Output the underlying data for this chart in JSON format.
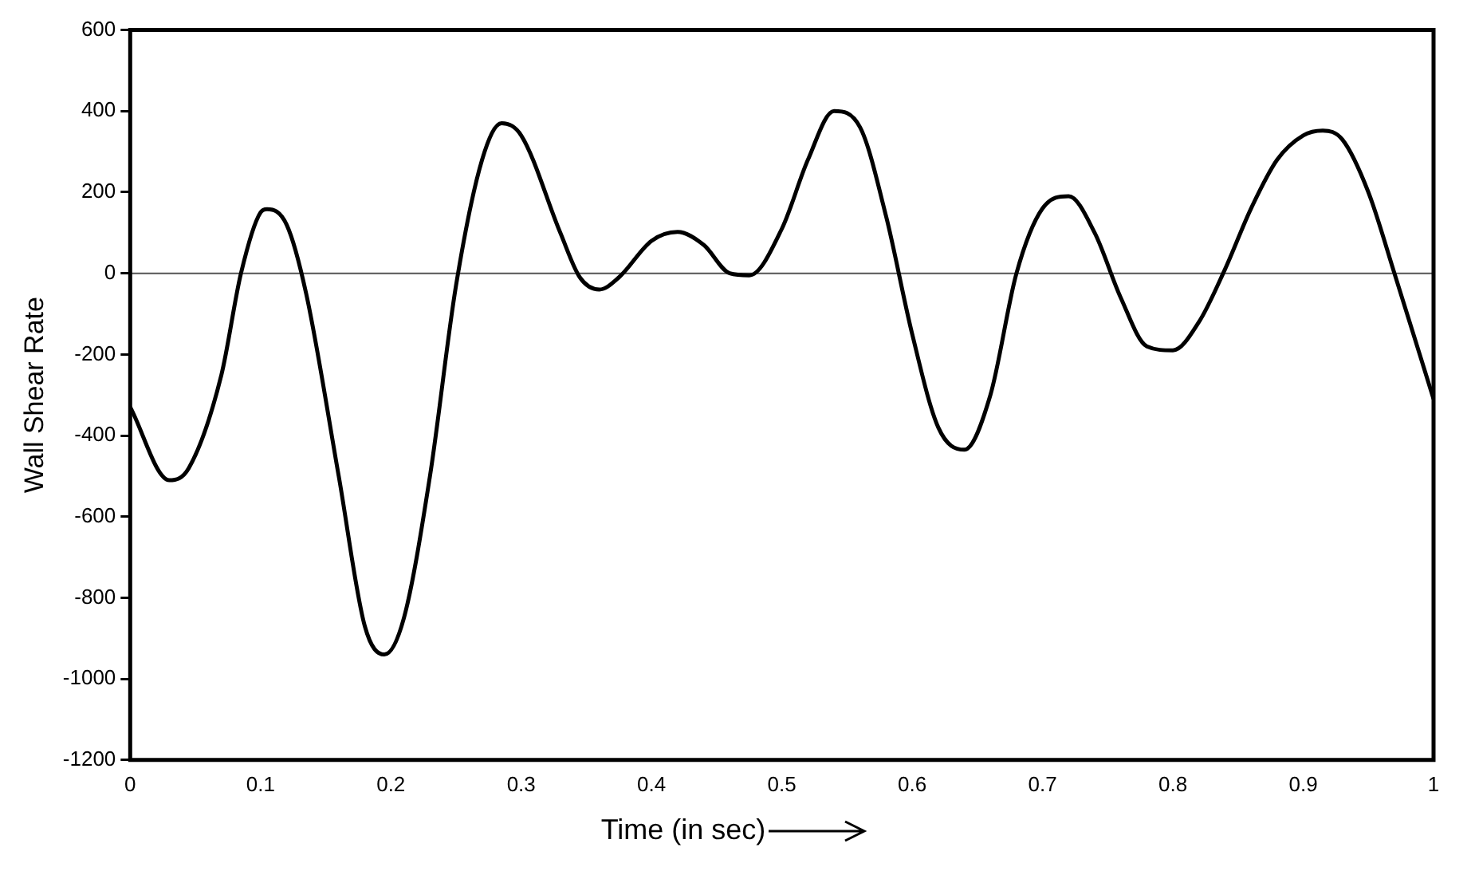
{
  "chart_data": {
    "type": "line",
    "xlabel": "Time (in sec)",
    "ylabel": "Wall Shear Rate",
    "x": [
      0,
      0.03,
      0.045,
      0.07,
      0.085,
      0.1,
      0.105,
      0.12,
      0.135,
      0.16,
      0.18,
      0.195,
      0.21,
      0.23,
      0.25,
      0.27,
      0.285,
      0.3,
      0.33,
      0.345,
      0.36,
      0.375,
      0.4,
      0.42,
      0.44,
      0.46,
      0.475,
      0.5,
      0.52,
      0.54,
      0.56,
      0.58,
      0.6,
      0.62,
      0.64,
      0.66,
      0.68,
      0.7,
      0.72,
      0.74,
      0.76,
      0.78,
      0.8,
      0.82,
      0.84,
      0.86,
      0.88,
      0.9,
      0.915,
      0.93,
      0.95,
      0.97,
      1.0
    ],
    "series": [
      {
        "color": "#000000",
        "values": [
          -330,
          -510,
          -480,
          -250,
          0,
          150,
          158,
          120,
          -50,
          -500,
          -870,
          -940,
          -850,
          -500,
          -30,
          280,
          370,
          340,
          100,
          -10,
          -40,
          -10,
          80,
          102,
          70,
          0,
          -5,
          110,
          280,
          400,
          360,
          140,
          -150,
          -380,
          -435,
          -300,
          0,
          160,
          190,
          100,
          -60,
          -180,
          -190,
          -120,
          10,
          160,
          280,
          340,
          352,
          330,
          200,
          0,
          -310
        ]
      }
    ],
    "xlim": [
      0,
      1
    ],
    "xticks": [
      0,
      0.1,
      0.2,
      0.3,
      0.4,
      0.5,
      0.6,
      0.7,
      0.8,
      0.9,
      1
    ],
    "ylim": [
      -1200,
      600
    ],
    "yticks": [
      -1200,
      -1000,
      -800,
      -600,
      -400,
      -200,
      0,
      200,
      400,
      600
    ],
    "ref_lines": [
      {
        "axis": "y",
        "value": 0,
        "color": "#555555"
      }
    ],
    "grid": false,
    "legend": false,
    "marker": "none",
    "line_style": "solid"
  }
}
